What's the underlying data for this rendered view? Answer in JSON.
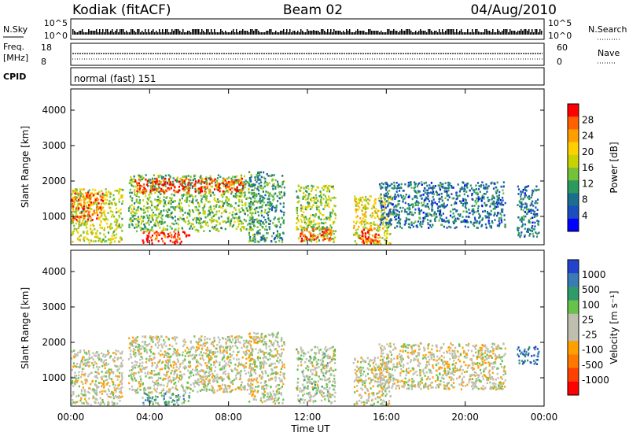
{
  "header": {
    "radar": "Kodiak (fitACF)",
    "beam": "Beam 02",
    "date": "04/Aug/2010"
  },
  "strips": {
    "nsky_label": "N.Sky",
    "nsky_ticks": [
      "10^5",
      "10^0"
    ],
    "nsearch_label": "N.Search",
    "freq_label_1": "Freq.",
    "freq_label_2": "[MHz]",
    "freq_ticks": [
      "18",
      "8"
    ],
    "nave_label": "Nave",
    "nave_ticks": [
      "60",
      "0"
    ],
    "cpid_label": "CPID",
    "cpid_text": "normal (fast) 151"
  },
  "x_axis": {
    "label": "Time UT",
    "ticks": [
      "00:00",
      "04:00",
      "08:00",
      "12:00",
      "16:00",
      "20:00",
      "00:00"
    ]
  },
  "colorbars": {
    "power": {
      "label": "Power [dB]",
      "ticks": [
        "28",
        "24",
        "20",
        "16",
        "12",
        "8",
        "4"
      ],
      "colors": [
        "#ff0000",
        "#ff6000",
        "#ff9e00",
        "#ffd000",
        "#c8d200",
        "#76c13a",
        "#2c9a5e",
        "#1b6e8e",
        "#1a4ec0",
        "#0000ff"
      ]
    },
    "velocity": {
      "label": "Velocity [m s⁻¹]",
      "ticks": [
        "1000",
        "500",
        "100",
        "25",
        "-25",
        "-100",
        "-500",
        "-1000"
      ],
      "colors": [
        "#2244cc",
        "#3a7ab5",
        "#2f9a6a",
        "#66c24a",
        "#bfbfb0",
        "#bfbfb0",
        "#ffa000",
        "#ff7800",
        "#ff4000",
        "#ff0000"
      ]
    }
  },
  "chart_data": [
    {
      "type": "heatmap",
      "name": "Power",
      "ylabel": "Slant Range [km]",
      "xlabel": "Time UT",
      "xlim": [
        0,
        24
      ],
      "ylim": [
        200,
        4600
      ],
      "yticks": [
        "1000",
        "2000",
        "3000",
        "4000"
      ],
      "colorbar_label": "Power [dB]",
      "colorbar_ticks": [
        28,
        24,
        20,
        16,
        12,
        8,
        4
      ],
      "regions": [
        {
          "t0": 0.0,
          "t1": 2.6,
          "r0": 250,
          "r1": 1800,
          "level": 0.55
        },
        {
          "t0": 0.0,
          "t1": 1.6,
          "r0": 900,
          "r1": 1700,
          "level": 0.85
        },
        {
          "t0": 2.9,
          "t1": 9.2,
          "r0": 600,
          "r1": 2200,
          "level": 0.45
        },
        {
          "t0": 3.2,
          "t1": 8.8,
          "r0": 1700,
          "r1": 2100,
          "level": 0.9
        },
        {
          "t0": 3.6,
          "t1": 6.0,
          "r0": 250,
          "r1": 600,
          "level": 0.95
        },
        {
          "t0": 9.0,
          "t1": 10.8,
          "r0": 300,
          "r1": 2300,
          "level": 0.35
        },
        {
          "t0": 11.4,
          "t1": 13.4,
          "r0": 300,
          "r1": 1900,
          "level": 0.5
        },
        {
          "t0": 11.6,
          "t1": 13.2,
          "r0": 300,
          "r1": 700,
          "level": 0.85
        },
        {
          "t0": 14.3,
          "t1": 16.2,
          "r0": 250,
          "r1": 1600,
          "level": 0.6
        },
        {
          "t0": 14.6,
          "t1": 15.6,
          "r0": 250,
          "r1": 700,
          "level": 0.9
        },
        {
          "t0": 15.6,
          "t1": 22.0,
          "r0": 700,
          "r1": 2000,
          "level": 0.25
        },
        {
          "t0": 22.6,
          "t1": 23.7,
          "r0": 400,
          "r1": 1900,
          "level": 0.25
        }
      ]
    },
    {
      "type": "heatmap",
      "name": "Velocity",
      "ylabel": "Slant Range [km]",
      "xlabel": "Time UT",
      "xlim": [
        0,
        24
      ],
      "ylim": [
        200,
        4600
      ],
      "yticks": [
        "1000",
        "2000",
        "3000",
        "4000"
      ],
      "colorbar_label": "Velocity [m s⁻¹]",
      "colorbar_ticks": [
        1000,
        500,
        100,
        25,
        -25,
        -100,
        -500,
        -1000
      ],
      "regions": [
        {
          "t0": 0.0,
          "t1": 2.6,
          "r0": 250,
          "r1": 1800,
          "level": 0.5
        },
        {
          "t0": 2.9,
          "t1": 9.2,
          "r0": 600,
          "r1": 2200,
          "level": 0.5
        },
        {
          "t0": 3.6,
          "t1": 6.0,
          "r0": 250,
          "r1": 600,
          "level": 0.3
        },
        {
          "t0": 9.0,
          "t1": 10.8,
          "r0": 300,
          "r1": 2300,
          "level": 0.5
        },
        {
          "t0": 11.4,
          "t1": 13.4,
          "r0": 300,
          "r1": 1900,
          "level": 0.45
        },
        {
          "t0": 14.3,
          "t1": 16.2,
          "r0": 250,
          "r1": 1600,
          "level": 0.5
        },
        {
          "t0": 15.6,
          "t1": 22.0,
          "r0": 700,
          "r1": 2000,
          "level": 0.52
        },
        {
          "t0": 22.6,
          "t1": 23.7,
          "r0": 1400,
          "r1": 1900,
          "level": 0.15
        }
      ]
    }
  ]
}
